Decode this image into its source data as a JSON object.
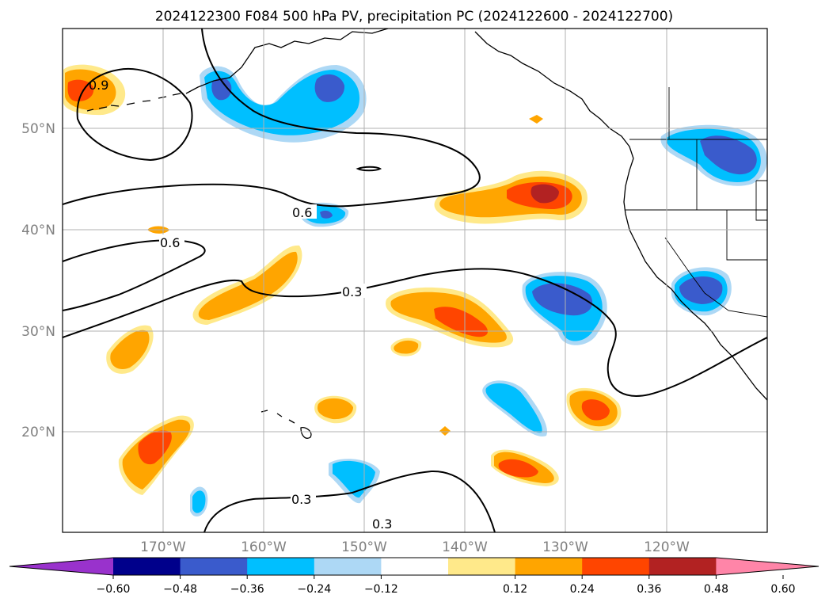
{
  "title": "2024122300 F084 500 hPa PV, precipitation PC (2024122600 - 2024122700)",
  "map": {
    "lon_labels": [
      "170°W",
      "160°W",
      "150°W",
      "140°W",
      "130°W",
      "120°W"
    ],
    "lat_labels": [
      "50°N",
      "40°N",
      "30°N",
      "20°N"
    ],
    "pv_contour_labels": [
      "0.9",
      "0.6",
      "0.6",
      "0.3",
      "0.3",
      "0.3"
    ]
  },
  "colorbar": {
    "ticks": [
      "−0.60",
      "−0.48",
      "−0.36",
      "−0.24",
      "−0.12",
      "0.12",
      "0.24",
      "0.36",
      "0.48",
      "0.60"
    ],
    "colors": [
      "#9932cc",
      "#00008b",
      "#3a5bcc",
      "#00bfff",
      "#add8f5",
      "#ffffff",
      "#ffe98a",
      "#ffa500",
      "#ff4500",
      "#b22222",
      "#ff85a8"
    ]
  },
  "colors": {
    "neg_dark": "#3a5bcc",
    "neg_mid": "#00bfff",
    "neg_light": "#add8f5",
    "pos_light": "#ffe98a",
    "pos_mid": "#ffa500",
    "pos_strong": "#ff4500",
    "pos_max": "#b22222",
    "grid": "#b0b0b0",
    "contour": "#000000"
  }
}
